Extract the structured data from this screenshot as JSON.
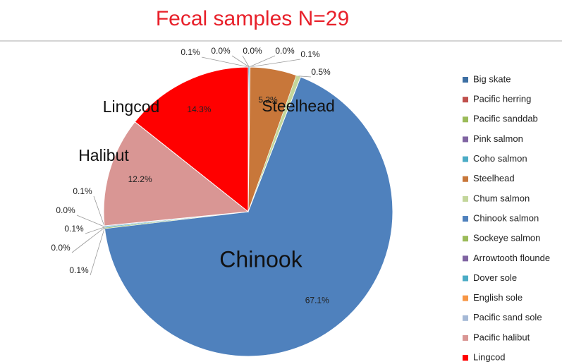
{
  "chart_data": {
    "type": "pie",
    "title": "Fecal samples  N=29",
    "categories": [
      "Big skate",
      "Pacific herring",
      "Pacific sanddab",
      "Pink salmon",
      "Coho salmon",
      "Steelhead",
      "Chum salmon",
      "Chinook salmon",
      "Sockeye salmon",
      "Arrowtooth flounde",
      "Dover sole",
      "English sole",
      "Pacific sand sole",
      "Pacific halibut",
      "Lingcod"
    ],
    "values": [
      0.1,
      0.0,
      0.0,
      0.0,
      0.1,
      5.2,
      0.5,
      67.1,
      0.1,
      0.0,
      0.1,
      0.0,
      0.1,
      12.2,
      14.3
    ],
    "value_labels": [
      "0.1%",
      "0.0%",
      "0.0%",
      "0.0%",
      "0.1%",
      "5.2%",
      "0.5%",
      "67.1%",
      "0.1%",
      "0.0%",
      "0.1%",
      "0.0%",
      "0.1%",
      "12.2%",
      "14.3%"
    ],
    "colors": [
      "#3d6fa3",
      "#c0504d",
      "#9bbb59",
      "#8064a2",
      "#4bacc6",
      "#c8773a",
      "#c3d69b",
      "#4f81bd",
      "#9bbb59",
      "#8064a2",
      "#4bacc6",
      "#f79646",
      "#a5b9d6",
      "#d99694",
      "#ff0000"
    ],
    "annotations": [
      "Chinook",
      "Steelhead",
      "Halibut",
      "Lingcod"
    ],
    "legend": "right"
  }
}
